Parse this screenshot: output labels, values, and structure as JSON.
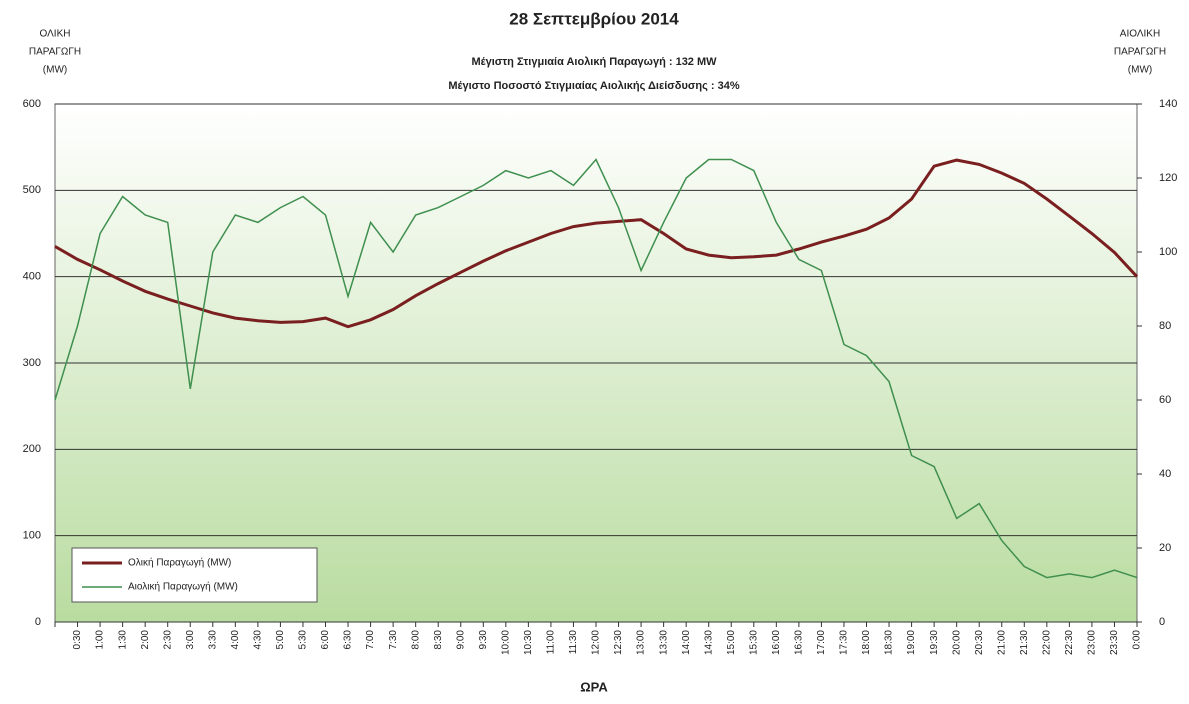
{
  "chart_data": {
    "type": "line",
    "title": "28 Σεπτεμβρίου 2014",
    "subtitle": [
      "Μέγιστη Στιγμιαία Αιολική Παραγωγή : 132 MW",
      "Μέγιστο Ποσοστό Στιγμιαίας Αιολικής Διείσδυσης : 34%"
    ],
    "ylabel": [
      "ΟΛΙΚΗ",
      "ΠΑΡΑΓΩΓΗ",
      "(MW)"
    ],
    "y2label": [
      "ΑΙΟΛΙΚΗ",
      "ΠΑΡΑΓΩΓΗ",
      "(MW)"
    ],
    "xlabel": "ΩΡΑ",
    "categories": [
      null,
      "0:30",
      "1:00",
      "1:30",
      "2:00",
      "2:30",
      "3:00",
      "3:30",
      "4:00",
      "4:30",
      "5:00",
      "5:30",
      "6:00",
      "6:30",
      "7:00",
      "7:30",
      "8:00",
      "8:30",
      "9:00",
      "9:30",
      "10:00",
      "10:30",
      "11:00",
      "11:30",
      "12:00",
      "12:30",
      "13:00",
      "13:30",
      "14:00",
      "14:30",
      "15:00",
      "15:30",
      "16:00",
      "16:30",
      "17:00",
      "17:30",
      "18:00",
      "18:30",
      "19:00",
      "19:30",
      "20:00",
      "20:30",
      "21:00",
      "21:30",
      "22:00",
      "22:30",
      "23:00",
      "23:30",
      "0:00"
    ],
    "series": [
      {
        "name": "Ολική Παραγωγή (MW)",
        "color": "#7a1f1f",
        "values": [
          435,
          420,
          408,
          395,
          383,
          374,
          366,
          358,
          352,
          349,
          347,
          348,
          352,
          342,
          350,
          362,
          378,
          392,
          405,
          418,
          430,
          440,
          450,
          458,
          462,
          464,
          466,
          450,
          432,
          425,
          422,
          423,
          425,
          432,
          440,
          447,
          455,
          468,
          490,
          528,
          535,
          530,
          520,
          508,
          490,
          470,
          450,
          428,
          400
        ]
      },
      {
        "name": "Αιολική Παραγωγή (MW)",
        "color": "#3f8f4f",
        "axis": "y2",
        "values": [
          60,
          80,
          105,
          115,
          110,
          108,
          63,
          100,
          110,
          108,
          112,
          115,
          110,
          88,
          108,
          100,
          110,
          112,
          115,
          118,
          122,
          120,
          122,
          118,
          125,
          112,
          95,
          108,
          120,
          125,
          125,
          122,
          108,
          98,
          95,
          75,
          72,
          65,
          45,
          42,
          28,
          32,
          22,
          15,
          12,
          13,
          12,
          14,
          12
        ]
      }
    ],
    "ylim": [
      0,
      600
    ],
    "yticks": [
      0,
      100,
      200,
      300,
      400,
      500,
      600
    ],
    "y2lim": [
      0,
      140
    ],
    "y2ticks": [
      0,
      20,
      40,
      60,
      80,
      100,
      120,
      140
    ],
    "grid": true,
    "legend": "lower left"
  }
}
